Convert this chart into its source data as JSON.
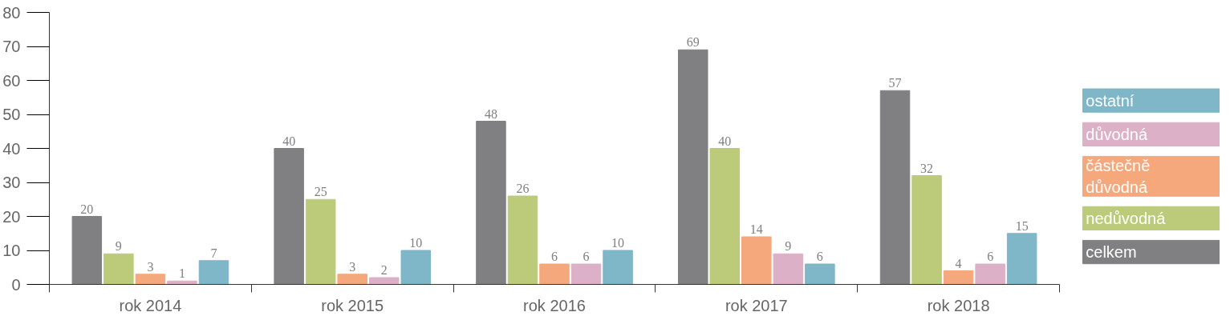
{
  "chart_data": {
    "type": "bar",
    "categories": [
      "rok 2014",
      "rok 2015",
      "rok 2016",
      "rok 2017",
      "rok 2018"
    ],
    "series": [
      {
        "name": "celkem",
        "color": "#808083",
        "values": [
          20,
          40,
          48,
          69,
          57
        ]
      },
      {
        "name": "nedůvodná",
        "color": "#bccb7a",
        "values": [
          9,
          25,
          26,
          40,
          32
        ]
      },
      {
        "name": "částečně důvodná",
        "color": "#f5a87c",
        "values": [
          3,
          3,
          6,
          14,
          4
        ]
      },
      {
        "name": "důvodná",
        "color": "#dcb0c6",
        "values": [
          1,
          2,
          6,
          9,
          6
        ]
      },
      {
        "name": "ostatní",
        "color": "#7fb6c8",
        "values": [
          7,
          10,
          10,
          6,
          15
        ]
      }
    ],
    "ylim": [
      0,
      80
    ],
    "yticks": [
      0,
      10,
      20,
      30,
      40,
      50,
      60,
      70,
      80
    ],
    "grid": false,
    "legend": "right",
    "data_labels": true
  }
}
